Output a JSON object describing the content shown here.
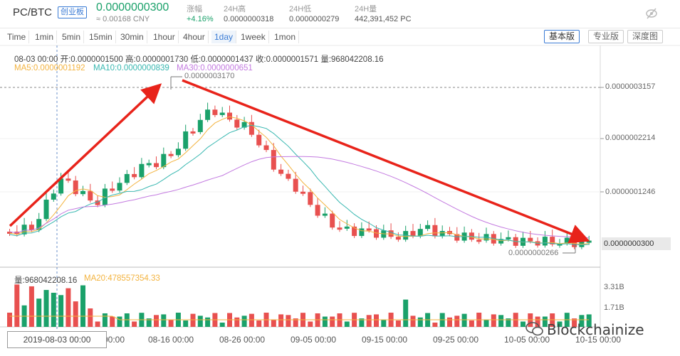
{
  "header": {
    "pair": "PC/BTC",
    "badge": "创业板",
    "price": "0.0000000300",
    "cny": "≈ 0.00168 CNY",
    "stats": [
      {
        "label": "涨幅",
        "value": "+4.16%"
      },
      {
        "label": "24H高",
        "value": "0.0000000318"
      },
      {
        "label": "24H低",
        "value": "0.0000000279"
      },
      {
        "label": "24H量",
        "value": "442,391,452 PC"
      }
    ]
  },
  "toolbar": {
    "intervals": [
      "Time",
      "1min",
      "5min",
      "15min",
      "30min",
      "1hour",
      "4hour",
      "1day",
      "1week",
      "1mon"
    ],
    "active_interval": "1day",
    "views": [
      "基本版",
      "专业版",
      "深度图"
    ],
    "active_view": "基本版"
  },
  "chart": {
    "ohlc_line": "08-03 00:00   开:0.0000001500  高:0.0000001730  低:0.0000001437  收:0.0000001571  量:968042208.16",
    "ma5": "MA5:0.0000001192",
    "ma10": "MA10:0.0000000839",
    "ma30": "MA30:0.0000000651",
    "high_annotation": "0.0000003170",
    "low_annotation": "0.0000000266",
    "price_axis": [
      "0.0000003157",
      "0.0000002214",
      "0.0000001246"
    ],
    "current_price_tag": "0.0000000300",
    "volume_label": "量:968042208.16",
    "ma20_volume": "MA20:478557354.33",
    "volume_axis": [
      "3.31B",
      "1.71B"
    ],
    "date_axis": [
      "00:00",
      "08-16 00:00",
      "08-26 00:00",
      "09-05 00:00",
      "09-15 00:00",
      "09-25 00:00",
      "10-05 00:00",
      "10-15 00:00"
    ],
    "crosshair_date": "2019-08-03 00:00",
    "colors": {
      "up": "#1aa16a",
      "down": "#e8504f",
      "ma5": "#f3b33f",
      "ma10": "#37b7b0",
      "ma30": "#c37ae0",
      "arrow": "#e8231a"
    }
  },
  "watermark": "Blockchainize"
}
